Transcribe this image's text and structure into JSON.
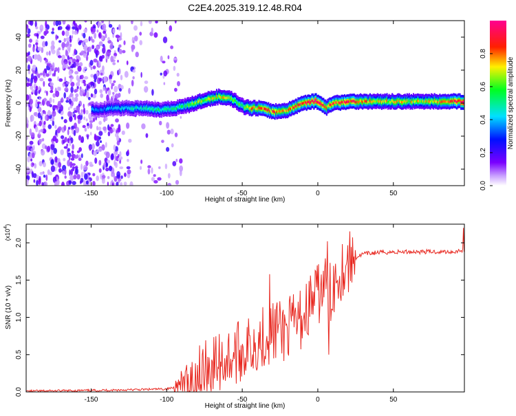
{
  "title": "C2E4.2025.319.12.48.R04",
  "chart_data": [
    {
      "type": "heatmap",
      "xlabel": "Height of straight line (km)",
      "ylabel": "Frequency (Hz)",
      "xlim": [
        -193,
        97
      ],
      "ylim": [
        -50,
        50
      ],
      "x_ticks": [
        -150,
        -100,
        -50,
        0,
        50
      ],
      "y_ticks": [
        -40,
        -20,
        0,
        20,
        40
      ],
      "x_tick_labels": [
        "-150",
        "-100",
        "-50",
        "0",
        "50"
      ],
      "y_tick_labels": [
        "-40",
        "-20",
        "0",
        "20",
        "40"
      ],
      "colorbar": {
        "label": "Normalized spectral amplitude",
        "range": [
          0,
          1
        ],
        "ticks": [
          0,
          0.2,
          0.4,
          0.6,
          0.8
        ],
        "tick_labels": [
          "0.0",
          "0.2",
          "0.4",
          "0.6",
          "0.8"
        ],
        "colormap": "rainbow (white-violet-blue-cyan-green-yellow-red-magenta)"
      },
      "ridge": {
        "description": "frequency of peak spectral amplitude vs height",
        "x": [
          -145,
          -135,
          -125,
          -115,
          -105,
          -95,
          -85,
          -75,
          -65,
          -58,
          -50,
          -45,
          -40,
          -35,
          -30,
          -25,
          -20,
          -15,
          -10,
          -5,
          0,
          5,
          10,
          20,
          40,
          60,
          80,
          95
        ],
        "y": [
          -4,
          -3,
          -3,
          -3,
          -4,
          -3,
          -1,
          2,
          4,
          3,
          -2,
          -3,
          -3,
          -4,
          -5,
          -5,
          -4,
          -2,
          0,
          1,
          1,
          -3,
          0,
          1,
          1,
          1,
          1,
          1
        ],
        "amplitude": [
          0.35,
          0.4,
          0.45,
          0.45,
          0.5,
          0.5,
          0.6,
          0.65,
          0.7,
          0.65,
          0.55,
          0.75,
          0.8,
          0.8,
          0.85,
          0.8,
          0.75,
          0.85,
          0.9,
          0.95,
          0.95,
          0.8,
          0.85,
          0.9,
          0.7,
          0.7,
          0.7,
          0.95
        ]
      },
      "noise_region_km": [
        -193,
        -100
      ]
    },
    {
      "type": "line",
      "xlabel": "Height of straight line (km)",
      "ylabel": "SNR (10 * v/v)",
      "y_multiplier": "(x10",
      "y_multiplier_exp": "4",
      "xlim": [
        -193,
        97
      ],
      "ylim": [
        0,
        2.25
      ],
      "x_ticks": [
        -150,
        -100,
        -50,
        0,
        50
      ],
      "y_ticks": [
        0,
        0.5,
        1.0,
        1.5,
        2.0
      ],
      "x_tick_labels": [
        "-150",
        "-100",
        "-50",
        "0",
        "50"
      ],
      "y_tick_labels": [
        "0.0",
        "0.5",
        "1.0",
        "1.5",
        "2.0"
      ],
      "series": [
        {
          "name": "SNR",
          "color": "#e8271f",
          "x": [
            -193,
            -150,
            -120,
            -100,
            -90,
            -80,
            -70,
            -60,
            -50,
            -45,
            -40,
            -35,
            -30,
            -25,
            -20,
            -15,
            -10,
            -5,
            0,
            5,
            8,
            12,
            18,
            25,
            30,
            40,
            60,
            80,
            90,
            95
          ],
          "y": [
            0.01,
            0.02,
            0.03,
            0.04,
            0.08,
            0.2,
            0.35,
            0.45,
            0.55,
            0.6,
            0.7,
            0.75,
            0.8,
            0.8,
            0.85,
            0.9,
            1.0,
            1.2,
            1.3,
            1.45,
            1.3,
            1.55,
            1.7,
            1.8,
            1.85,
            1.87,
            1.88,
            1.88,
            1.88,
            1.9
          ]
        }
      ],
      "peaks": [
        {
          "x": -32,
          "y": 1.58
        },
        {
          "x": -27,
          "y": 1.2
        },
        {
          "x": 6,
          "y": 2.02
        },
        {
          "x": 7,
          "y": 0.5
        },
        {
          "x": 96,
          "y": 2.2
        }
      ]
    }
  ],
  "colors": {
    "axis": "#000000",
    "background": "#ffffff",
    "snr_line": "#e8271f"
  }
}
